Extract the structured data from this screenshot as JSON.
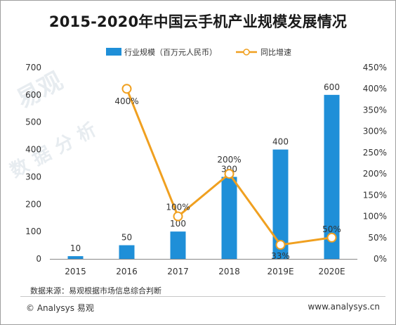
{
  "title": "2015-2020年中国云手机产业规模发展情况",
  "legend": {
    "bar_label": "行业规模（百万元人民币）",
    "line_label": "同比增速"
  },
  "source": "数据来源：易观根据市场信息综合判断",
  "brand": "© Analysys 易观",
  "website": "www.analysys.cn",
  "watermark": {
    "top": "易观",
    "bottom": "数据分析"
  },
  "colors": {
    "bar": "#1f8fd8",
    "line": "#f0a020",
    "marker_fill": "#ffffff"
  },
  "chart_data": {
    "type": "bar",
    "categories": [
      "2015",
      "2016",
      "2017",
      "2018",
      "2019E",
      "2020E"
    ],
    "series": [
      {
        "name": "行业规模（百万元人民币）",
        "type": "bar",
        "axis": "left",
        "values": [
          10,
          50,
          100,
          300,
          400,
          600
        ],
        "labels": [
          "10",
          "50",
          "100",
          "300",
          "400",
          "600"
        ]
      },
      {
        "name": "同比增速",
        "type": "line",
        "axis": "right",
        "values": [
          null,
          400,
          100,
          200,
          33,
          50
        ],
        "labels": [
          "",
          "400%",
          "100%",
          "200%",
          "33%",
          "50%"
        ]
      }
    ],
    "y_left": {
      "min": 0,
      "max": 700,
      "ticks": [
        "0",
        "100",
        "200",
        "300",
        "400",
        "500",
        "600",
        "700"
      ]
    },
    "y_right": {
      "min": 0,
      "max": 450,
      "ticks": [
        "0%",
        "50%",
        "100%",
        "150%",
        "200%",
        "250%",
        "300%",
        "350%",
        "400%",
        "450%"
      ]
    },
    "grid": false,
    "legend_position": "top"
  }
}
